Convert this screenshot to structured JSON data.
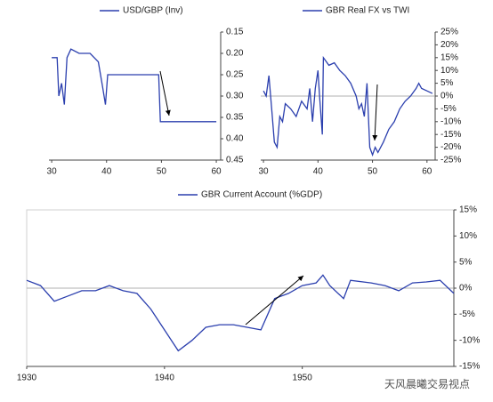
{
  "chart_data": [
    {
      "type": "line",
      "y_axis_side": "right",
      "y_inverted": true,
      "zero_line": false,
      "x": [
        30,
        31,
        31.3,
        31.8,
        32.3,
        32.8,
        33.5,
        35,
        37,
        38.5,
        39.3,
        39.8,
        40.2,
        49.5,
        49.8,
        55,
        60
      ],
      "series": [
        {
          "name": "USD/GBP (Inv)",
          "color": "#2b3fae",
          "values": [
            0.21,
            0.21,
            0.3,
            0.27,
            0.32,
            0.21,
            0.19,
            0.2,
            0.2,
            0.22,
            0.28,
            0.32,
            0.25,
            0.25,
            0.36,
            0.36,
            0.36
          ]
        }
      ],
      "xlim": [
        29.5,
        60.8
      ],
      "xticks": [
        30,
        40,
        50,
        60
      ],
      "ylim": [
        0.15,
        0.45
      ],
      "yticks": [
        {
          "value": 0.15,
          "label": "0.15"
        },
        {
          "value": 0.2,
          "label": "0.20"
        },
        {
          "value": 0.25,
          "label": "0.25"
        },
        {
          "value": 0.3,
          "label": "0.30"
        },
        {
          "value": 0.35,
          "label": "0.35"
        },
        {
          "value": 0.4,
          "label": "0.40"
        },
        {
          "value": 0.45,
          "label": "0.45"
        }
      ]
    },
    {
      "type": "line",
      "y_axis_side": "right",
      "y_inverted": false,
      "zero_line": true,
      "x": [
        30,
        30.5,
        31,
        31.5,
        32,
        32.5,
        33,
        33.5,
        34,
        35,
        36,
        37,
        38,
        38.5,
        39,
        39.5,
        40,
        40.3,
        40.8,
        41,
        42,
        43,
        44,
        45,
        46,
        47,
        47.5,
        48,
        48.5,
        49,
        49.5,
        50,
        50.5,
        51,
        52,
        53,
        54,
        55,
        56,
        57,
        58,
        58.5,
        59,
        60,
        61
      ],
      "series": [
        {
          "name": "GBR Real FX vs TWI",
          "color": "#2b3fae",
          "values": [
            2,
            0,
            8,
            -5,
            -18,
            -20,
            -8,
            -10,
            -3,
            -5,
            -8,
            -2,
            -5,
            3,
            -10,
            3,
            10,
            0,
            -15,
            15,
            12,
            13,
            10,
            8,
            5,
            0,
            -5,
            -3,
            -8,
            5,
            -20,
            -23,
            -20,
            -22,
            -18,
            -13,
            -10,
            -5,
            -2,
            0,
            3,
            5,
            3,
            2,
            1
          ]
        }
      ],
      "xlim": [
        29.5,
        61.5
      ],
      "xticks": [
        30,
        40,
        50,
        60
      ],
      "ylim": [
        -25,
        25
      ],
      "yticks": [
        {
          "value": 25,
          "label": "25%"
        },
        {
          "value": 20,
          "label": "20%"
        },
        {
          "value": 15,
          "label": "15%"
        },
        {
          "value": 10,
          "label": "10%"
        },
        {
          "value": 5,
          "label": "5%"
        },
        {
          "value": 0,
          "label": "0%"
        },
        {
          "value": -5,
          "label": "-5%"
        },
        {
          "value": -10,
          "label": "-10%"
        },
        {
          "value": -15,
          "label": "-15%"
        },
        {
          "value": -20,
          "label": "-20%"
        },
        {
          "value": -25,
          "label": "-25%"
        }
      ]
    },
    {
      "type": "line",
      "y_axis_side": "right",
      "y_inverted": false,
      "zero_line": true,
      "x": [
        1930,
        1931,
        1932,
        1933,
        1934,
        1935,
        1936,
        1937,
        1938,
        1939,
        1940,
        1941,
        1942,
        1943,
        1944,
        1945,
        1946,
        1947,
        1948,
        1949,
        1950,
        1951,
        1951.5,
        1952,
        1953,
        1953.5,
        1955,
        1956,
        1957,
        1958,
        1959,
        1960,
        1961
      ],
      "series": [
        {
          "name": "GBR Current Account (%GDP)",
          "color": "#2b3fae",
          "values": [
            1.5,
            0.5,
            -2.5,
            -1.5,
            -0.5,
            -0.5,
            0.5,
            -0.5,
            -1,
            -4,
            -8,
            -12,
            -10,
            -7.5,
            -7,
            -7,
            -7.5,
            -8,
            -2,
            -1,
            0.5,
            1,
            2.5,
            0.5,
            -2,
            1.5,
            1,
            0.5,
            -0.5,
            1,
            1.2,
            1.5,
            -1
          ]
        }
      ],
      "xlim": [
        1930,
        1961
      ],
      "xticks": [
        1930,
        1940,
        1950
      ],
      "ylim": [
        -15,
        15
      ],
      "yticks": [
        {
          "value": 15,
          "label": "15%"
        },
        {
          "value": 10,
          "label": "10%"
        },
        {
          "value": 5,
          "label": "5%"
        },
        {
          "value": 0,
          "label": "0%"
        },
        {
          "value": -5,
          "label": "-5%"
        },
        {
          "value": -10,
          "label": "-10%"
        },
        {
          "value": -15,
          "label": "-15%"
        }
      ]
    }
  ],
  "watermark": "天风晨曦交易视点"
}
